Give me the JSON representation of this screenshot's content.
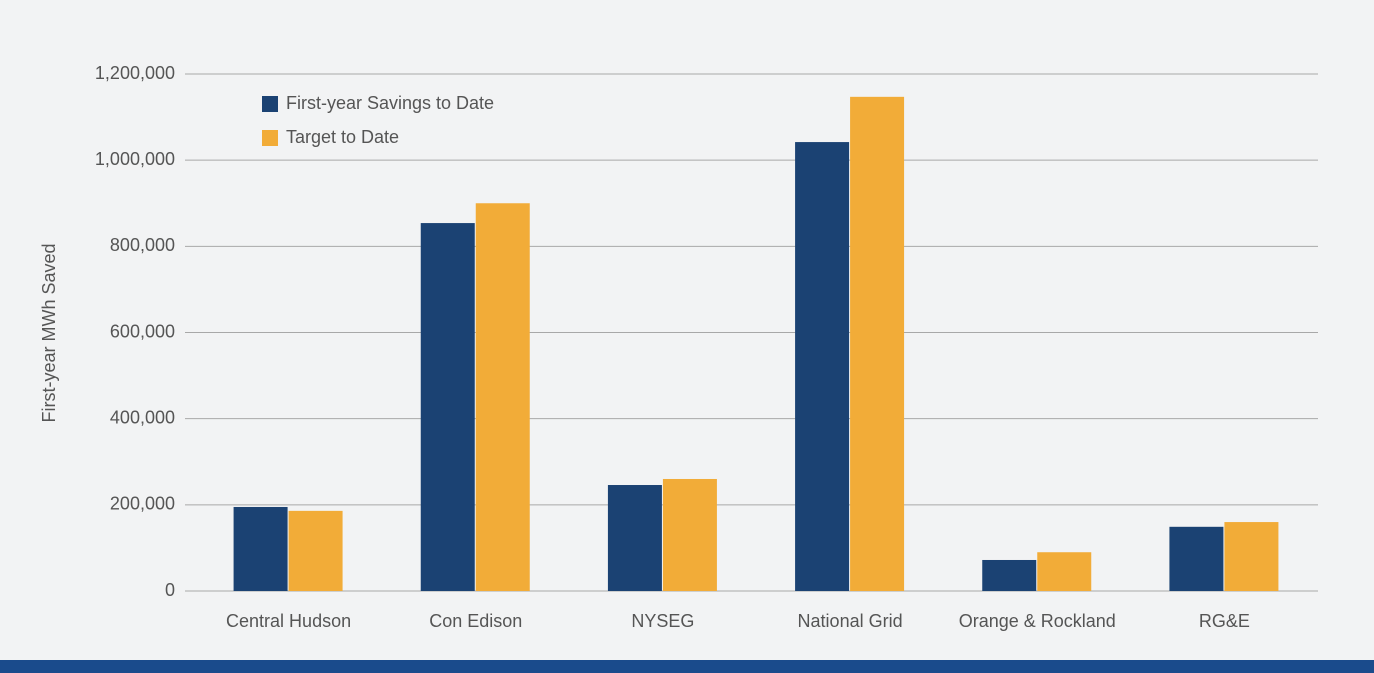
{
  "chart_data": {
    "type": "bar",
    "y_label": "First-year MWh Saved",
    "categories": [
      "Central Hudson",
      "Con Edison",
      "NYSEG",
      "National Grid",
      "Orange & Rockland",
      "RG&E"
    ],
    "series": [
      {
        "name": "First-year Savings to Date",
        "color": "#1b4273",
        "values": [
          195000,
          854000,
          246000,
          1042000,
          72000,
          149000
        ]
      },
      {
        "name": "Target to Date",
        "color": "#f2ac38",
        "values": [
          186000,
          900000,
          260000,
          1147000,
          90000,
          160000
        ]
      }
    ],
    "ylim": [
      0,
      1200000
    ],
    "yticks": [
      0,
      {
        "value": 200000,
        "label": "200,000"
      },
      {
        "value": 400000,
        "label": "400,000"
      },
      {
        "value": 600000,
        "label": "600,000"
      },
      {
        "value": 800000,
        "label": "800,000"
      },
      {
        "value": 1000000,
        "label": "1,000,000"
      },
      {
        "value": 1200000,
        "label": "1,200,000"
      }
    ],
    "grid": true,
    "legend": "top-left"
  }
}
